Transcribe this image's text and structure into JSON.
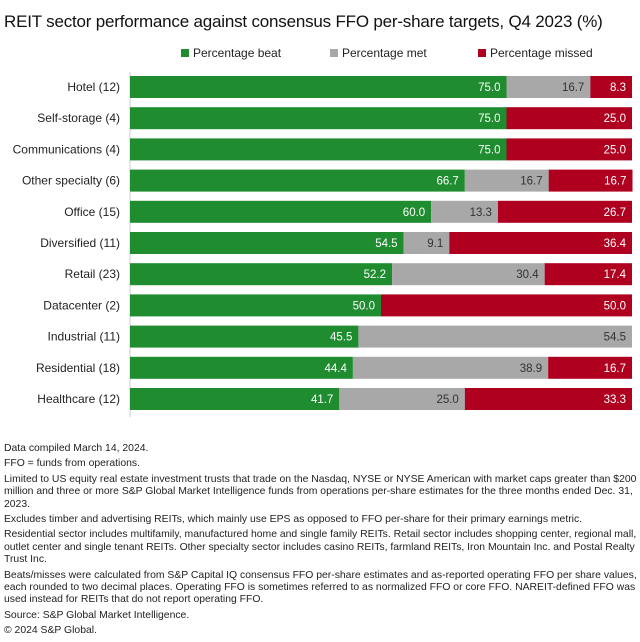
{
  "chart_data": {
    "type": "bar",
    "orientation": "horizontal",
    "stacked": true,
    "title": "REIT sector performance against consensus FFO per-share targets, Q4 2023 (%)",
    "categories": [
      "Hotel (12)",
      "Self-storage (4)",
      "Communications (4)",
      "Other specialty (6)",
      "Office (15)",
      "Diversified (11)",
      "Retail (23)",
      "Datacenter (2)",
      "Industrial (11)",
      "Residential (18)",
      "Healthcare (12)"
    ],
    "series": [
      {
        "name": "Percentage beat",
        "color": "#1e8c2f",
        "values": [
          75.0,
          75.0,
          75.0,
          66.7,
          60.0,
          54.5,
          52.2,
          50.0,
          45.5,
          44.4,
          41.7
        ]
      },
      {
        "name": "Percentage met",
        "color": "#a8a8a8",
        "values": [
          16.7,
          0,
          0,
          16.7,
          13.3,
          9.1,
          30.4,
          0,
          54.5,
          38.9,
          25.0
        ]
      },
      {
        "name": "Percentage missed",
        "color": "#b0001f",
        "values": [
          8.3,
          25.0,
          25.0,
          16.7,
          26.7,
          36.4,
          17.4,
          50.0,
          0,
          16.7,
          33.3
        ]
      }
    ],
    "xlim": [
      0,
      100
    ],
    "grid": false,
    "legend": "top"
  },
  "notes": [
    "Data compiled March 14, 2024.",
    "FFO = funds from operations.",
    "Limited to US equity real estate investment trusts that trade on the Nasdaq, NYSE or NYSE American with market caps greater than $200 million and three or more S&P Global Market Intelligence funds from operations per-share estimates for the three months ended Dec. 31, 2023.",
    "Excludes timber and advertising REITs, which mainly use EPS as opposed to FFO per-share for their primary earnings metric.",
    "Residential sector includes multifamily, manufactured home and single family REITs. Retail sector includes shopping center, regional mall, outlet center and single tenant REITs. Other specialty sector includes casino REITs, farmland REITs, Iron Mountain Inc. and Postal Realty Trust Inc.",
    "Beats/misses were calculated from S&P Capital IQ consensus FFO per-share estimates and as-reported operating FFO per share values, each rounded to two decimal places. Operating FFO is sometimes referred to as normalized FFO or core FFO. NAREIT-defined FFO was used instead for REITs that do not report operating FFO.",
    "Source: S&P Global Market Intelligence.",
    "© 2024 S&P Global."
  ]
}
